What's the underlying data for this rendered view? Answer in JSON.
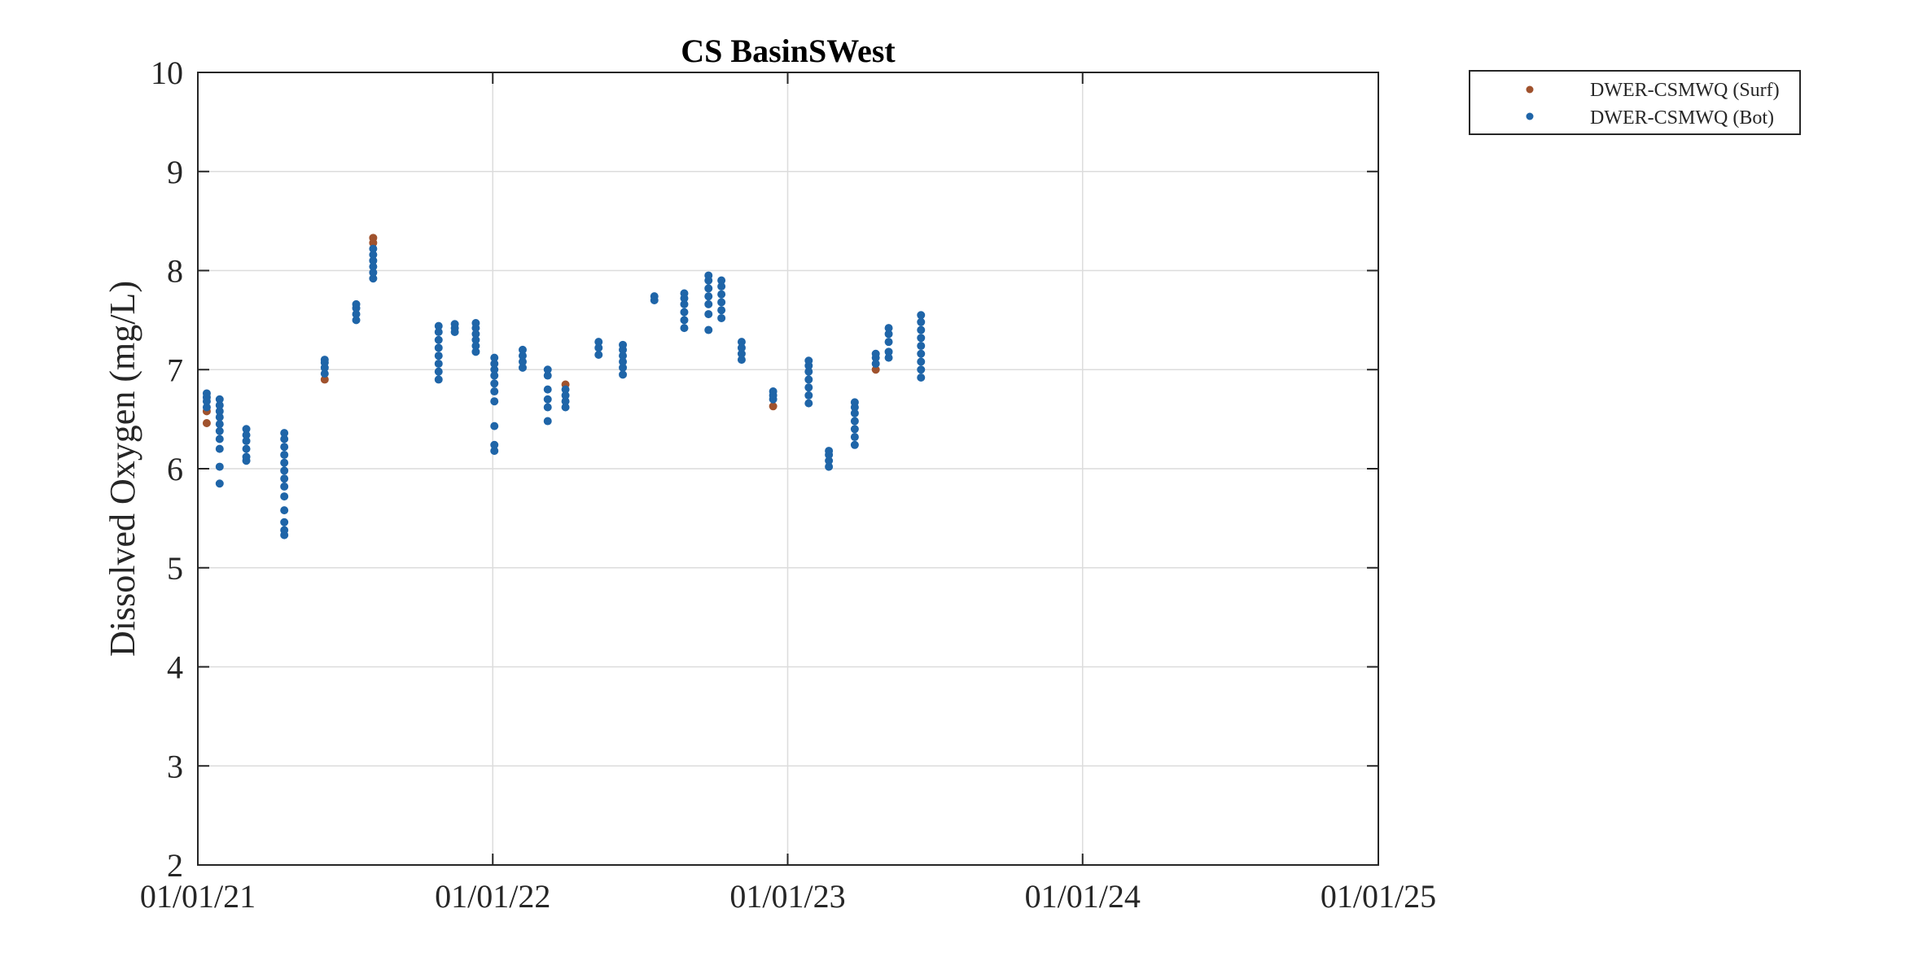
{
  "chart_data": {
    "type": "scatter",
    "title": "CS BasinSWest",
    "xlabel": "",
    "ylabel": "Dissolved Oxygen (mg/L)",
    "xlim": [
      "2021-01-01",
      "2025-01-01"
    ],
    "ylim": [
      2,
      10
    ],
    "x_ticks": [
      "01/01/21",
      "01/01/22",
      "01/01/23",
      "01/01/24",
      "01/01/25"
    ],
    "y_ticks": [
      2,
      3,
      4,
      5,
      6,
      7,
      8,
      9,
      10
    ],
    "grid": true,
    "legend_position": "outside-top-right",
    "series": [
      {
        "name": "DWER-CSMWQ (Surf)",
        "color": "#a0522d",
        "points": [
          {
            "x": "2021-01-12",
            "y": 6.46
          },
          {
            "x": "2021-01-12",
            "y": 6.58
          },
          {
            "x": "2021-06-07",
            "y": 6.9
          },
          {
            "x": "2021-08-06",
            "y": 8.33
          },
          {
            "x": "2021-08-06",
            "y": 8.28
          },
          {
            "x": "2022-04-01",
            "y": 6.85
          },
          {
            "x": "2022-12-14",
            "y": 6.63
          },
          {
            "x": "2023-04-20",
            "y": 7.0
          }
        ]
      },
      {
        "name": "DWER-CSMWQ (Bot)",
        "color": "#1f65a8",
        "points": [
          {
            "x": "2021-01-12",
            "y": 6.62
          },
          {
            "x": "2021-01-12",
            "y": 6.68
          },
          {
            "x": "2021-01-12",
            "y": 6.72
          },
          {
            "x": "2021-01-12",
            "y": 6.76
          },
          {
            "x": "2021-01-28",
            "y": 5.85
          },
          {
            "x": "2021-01-28",
            "y": 6.02
          },
          {
            "x": "2021-01-28",
            "y": 6.2
          },
          {
            "x": "2021-01-28",
            "y": 6.3
          },
          {
            "x": "2021-01-28",
            "y": 6.38
          },
          {
            "x": "2021-01-28",
            "y": 6.45
          },
          {
            "x": "2021-01-28",
            "y": 6.52
          },
          {
            "x": "2021-01-28",
            "y": 6.58
          },
          {
            "x": "2021-01-28",
            "y": 6.64
          },
          {
            "x": "2021-01-28",
            "y": 6.7
          },
          {
            "x": "2021-03-02",
            "y": 6.08
          },
          {
            "x": "2021-03-02",
            "y": 6.12
          },
          {
            "x": "2021-03-02",
            "y": 6.2
          },
          {
            "x": "2021-03-02",
            "y": 6.28
          },
          {
            "x": "2021-03-02",
            "y": 6.34
          },
          {
            "x": "2021-03-02",
            "y": 6.4
          },
          {
            "x": "2021-04-18",
            "y": 5.33
          },
          {
            "x": "2021-04-18",
            "y": 5.38
          },
          {
            "x": "2021-04-18",
            "y": 5.46
          },
          {
            "x": "2021-04-18",
            "y": 5.58
          },
          {
            "x": "2021-04-18",
            "y": 5.72
          },
          {
            "x": "2021-04-18",
            "y": 5.82
          },
          {
            "x": "2021-04-18",
            "y": 5.9
          },
          {
            "x": "2021-04-18",
            "y": 5.98
          },
          {
            "x": "2021-04-18",
            "y": 6.06
          },
          {
            "x": "2021-04-18",
            "y": 6.14
          },
          {
            "x": "2021-04-18",
            "y": 6.22
          },
          {
            "x": "2021-04-18",
            "y": 6.3
          },
          {
            "x": "2021-04-18",
            "y": 6.36
          },
          {
            "x": "2021-06-07",
            "y": 6.96
          },
          {
            "x": "2021-06-07",
            "y": 7.02
          },
          {
            "x": "2021-06-07",
            "y": 7.07
          },
          {
            "x": "2021-06-07",
            "y": 7.1
          },
          {
            "x": "2021-07-16",
            "y": 7.5
          },
          {
            "x": "2021-07-16",
            "y": 7.56
          },
          {
            "x": "2021-07-16",
            "y": 7.62
          },
          {
            "x": "2021-07-16",
            "y": 7.66
          },
          {
            "x": "2021-08-06",
            "y": 7.92
          },
          {
            "x": "2021-08-06",
            "y": 7.98
          },
          {
            "x": "2021-08-06",
            "y": 8.04
          },
          {
            "x": "2021-08-06",
            "y": 8.1
          },
          {
            "x": "2021-08-06",
            "y": 8.16
          },
          {
            "x": "2021-08-06",
            "y": 8.22
          },
          {
            "x": "2021-10-26",
            "y": 6.9
          },
          {
            "x": "2021-10-26",
            "y": 6.98
          },
          {
            "x": "2021-10-26",
            "y": 7.06
          },
          {
            "x": "2021-10-26",
            "y": 7.14
          },
          {
            "x": "2021-10-26",
            "y": 7.22
          },
          {
            "x": "2021-10-26",
            "y": 7.3
          },
          {
            "x": "2021-10-26",
            "y": 7.38
          },
          {
            "x": "2021-10-26",
            "y": 7.44
          },
          {
            "x": "2021-11-15",
            "y": 7.38
          },
          {
            "x": "2021-11-15",
            "y": 7.42
          },
          {
            "x": "2021-11-15",
            "y": 7.46
          },
          {
            "x": "2021-12-11",
            "y": 7.18
          },
          {
            "x": "2021-12-11",
            "y": 7.24
          },
          {
            "x": "2021-12-11",
            "y": 7.3
          },
          {
            "x": "2021-12-11",
            "y": 7.36
          },
          {
            "x": "2021-12-11",
            "y": 7.42
          },
          {
            "x": "2021-12-11",
            "y": 7.47
          },
          {
            "x": "2022-01-03",
            "y": 6.18
          },
          {
            "x": "2022-01-03",
            "y": 6.24
          },
          {
            "x": "2022-01-03",
            "y": 6.43
          },
          {
            "x": "2022-01-03",
            "y": 6.68
          },
          {
            "x": "2022-01-03",
            "y": 6.78
          },
          {
            "x": "2022-01-03",
            "y": 6.86
          },
          {
            "x": "2022-01-03",
            "y": 6.94
          },
          {
            "x": "2022-01-03",
            "y": 7.0
          },
          {
            "x": "2022-01-03",
            "y": 7.06
          },
          {
            "x": "2022-01-03",
            "y": 7.12
          },
          {
            "x": "2022-02-07",
            "y": 7.02
          },
          {
            "x": "2022-02-07",
            "y": 7.08
          },
          {
            "x": "2022-02-07",
            "y": 7.14
          },
          {
            "x": "2022-02-07",
            "y": 7.2
          },
          {
            "x": "2022-03-10",
            "y": 6.48
          },
          {
            "x": "2022-03-10",
            "y": 6.62
          },
          {
            "x": "2022-03-10",
            "y": 6.7
          },
          {
            "x": "2022-03-10",
            "y": 6.8
          },
          {
            "x": "2022-03-10",
            "y": 6.94
          },
          {
            "x": "2022-03-10",
            "y": 7.0
          },
          {
            "x": "2022-04-01",
            "y": 6.62
          },
          {
            "x": "2022-04-01",
            "y": 6.68
          },
          {
            "x": "2022-04-01",
            "y": 6.74
          },
          {
            "x": "2022-04-01",
            "y": 6.8
          },
          {
            "x": "2022-05-12",
            "y": 7.15
          },
          {
            "x": "2022-05-12",
            "y": 7.22
          },
          {
            "x": "2022-05-12",
            "y": 7.28
          },
          {
            "x": "2022-06-11",
            "y": 6.95
          },
          {
            "x": "2022-06-11",
            "y": 7.02
          },
          {
            "x": "2022-06-11",
            "y": 7.08
          },
          {
            "x": "2022-06-11",
            "y": 7.14
          },
          {
            "x": "2022-06-11",
            "y": 7.2
          },
          {
            "x": "2022-06-11",
            "y": 7.25
          },
          {
            "x": "2022-07-20",
            "y": 7.7
          },
          {
            "x": "2022-07-20",
            "y": 7.74
          },
          {
            "x": "2022-08-26",
            "y": 7.42
          },
          {
            "x": "2022-08-26",
            "y": 7.5
          },
          {
            "x": "2022-08-26",
            "y": 7.58
          },
          {
            "x": "2022-08-26",
            "y": 7.66
          },
          {
            "x": "2022-08-26",
            "y": 7.72
          },
          {
            "x": "2022-08-26",
            "y": 7.77
          },
          {
            "x": "2022-09-25",
            "y": 7.4
          },
          {
            "x": "2022-09-25",
            "y": 7.56
          },
          {
            "x": "2022-09-25",
            "y": 7.66
          },
          {
            "x": "2022-09-25",
            "y": 7.74
          },
          {
            "x": "2022-09-25",
            "y": 7.82
          },
          {
            "x": "2022-09-25",
            "y": 7.9
          },
          {
            "x": "2022-09-25",
            "y": 7.95
          },
          {
            "x": "2022-10-11",
            "y": 7.52
          },
          {
            "x": "2022-10-11",
            "y": 7.6
          },
          {
            "x": "2022-10-11",
            "y": 7.68
          },
          {
            "x": "2022-10-11",
            "y": 7.76
          },
          {
            "x": "2022-10-11",
            "y": 7.84
          },
          {
            "x": "2022-10-11",
            "y": 7.9
          },
          {
            "x": "2022-11-05",
            "y": 7.1
          },
          {
            "x": "2022-11-05",
            "y": 7.16
          },
          {
            "x": "2022-11-05",
            "y": 7.22
          },
          {
            "x": "2022-11-05",
            "y": 7.28
          },
          {
            "x": "2022-12-14",
            "y": 6.7
          },
          {
            "x": "2022-12-14",
            "y": 6.74
          },
          {
            "x": "2022-12-14",
            "y": 6.78
          },
          {
            "x": "2023-01-27",
            "y": 6.66
          },
          {
            "x": "2023-01-27",
            "y": 6.74
          },
          {
            "x": "2023-01-27",
            "y": 6.82
          },
          {
            "x": "2023-01-27",
            "y": 6.9
          },
          {
            "x": "2023-01-27",
            "y": 6.98
          },
          {
            "x": "2023-01-27",
            "y": 7.04
          },
          {
            "x": "2023-01-27",
            "y": 7.09
          },
          {
            "x": "2023-02-21",
            "y": 6.02
          },
          {
            "x": "2023-02-21",
            "y": 6.08
          },
          {
            "x": "2023-02-21",
            "y": 6.14
          },
          {
            "x": "2023-02-21",
            "y": 6.18
          },
          {
            "x": "2023-03-25",
            "y": 6.24
          },
          {
            "x": "2023-03-25",
            "y": 6.32
          },
          {
            "x": "2023-03-25",
            "y": 6.4
          },
          {
            "x": "2023-03-25",
            "y": 6.48
          },
          {
            "x": "2023-03-25",
            "y": 6.56
          },
          {
            "x": "2023-03-25",
            "y": 6.62
          },
          {
            "x": "2023-03-25",
            "y": 6.67
          },
          {
            "x": "2023-04-20",
            "y": 7.06
          },
          {
            "x": "2023-04-20",
            "y": 7.12
          },
          {
            "x": "2023-04-20",
            "y": 7.16
          },
          {
            "x": "2023-05-06",
            "y": 7.12
          },
          {
            "x": "2023-05-06",
            "y": 7.18
          },
          {
            "x": "2023-05-06",
            "y": 7.28
          },
          {
            "x": "2023-05-06",
            "y": 7.36
          },
          {
            "x": "2023-05-06",
            "y": 7.42
          },
          {
            "x": "2023-06-15",
            "y": 6.92
          },
          {
            "x": "2023-06-15",
            "y": 7.0
          },
          {
            "x": "2023-06-15",
            "y": 7.08
          },
          {
            "x": "2023-06-15",
            "y": 7.16
          },
          {
            "x": "2023-06-15",
            "y": 7.24
          },
          {
            "x": "2023-06-15",
            "y": 7.32
          },
          {
            "x": "2023-06-15",
            "y": 7.4
          },
          {
            "x": "2023-06-15",
            "y": 7.48
          },
          {
            "x": "2023-06-15",
            "y": 7.55
          }
        ]
      }
    ]
  }
}
